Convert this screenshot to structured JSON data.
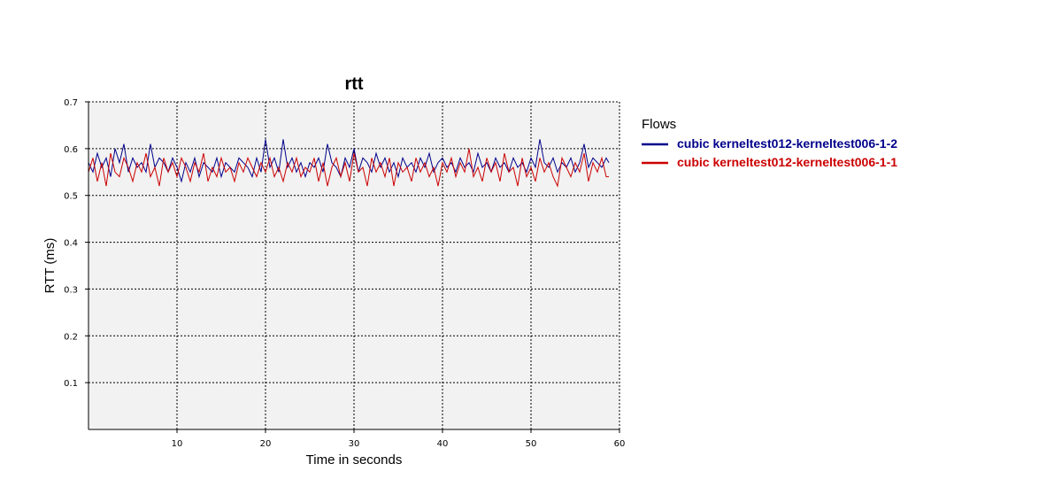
{
  "chart_data": {
    "type": "line",
    "title": "rtt",
    "xlabel": "Time in seconds",
    "ylabel": "RTT (ms)",
    "xlim": [
      0,
      60
    ],
    "ylim": [
      0,
      0.7
    ],
    "x_ticks": [
      10,
      20,
      30,
      40,
      50,
      60
    ],
    "y_ticks": [
      0.1,
      0.2,
      0.3,
      0.4,
      0.5,
      0.6,
      0.7
    ],
    "grid": true,
    "legend": {
      "title": "Flows",
      "position": "right"
    },
    "series": [
      {
        "name": "cubic kerneltest012-kerneltest006-1-2",
        "color": "#00008b",
        "x": [
          0,
          0.5,
          1,
          1.5,
          2,
          2.5,
          3,
          3.5,
          4,
          4.5,
          5,
          5.5,
          6,
          6.5,
          7,
          7.5,
          8,
          8.5,
          9,
          9.5,
          10,
          10.5,
          11,
          11.5,
          12,
          12.5,
          13,
          13.5,
          14,
          14.5,
          15,
          15.5,
          16,
          16.5,
          17,
          17.5,
          18,
          18.5,
          19,
          19.5,
          20,
          20.5,
          21,
          21.5,
          22,
          22.5,
          23,
          23.5,
          24,
          24.5,
          25,
          25.5,
          26,
          26.5,
          27,
          27.5,
          28,
          28.5,
          29,
          29.5,
          30,
          30.5,
          31,
          31.5,
          32,
          32.5,
          33,
          33.5,
          34,
          34.5,
          35,
          35.5,
          36,
          36.5,
          37,
          37.5,
          38,
          38.5,
          39,
          39.5,
          40,
          40.5,
          41,
          41.5,
          42,
          42.5,
          43,
          43.5,
          44,
          44.5,
          45,
          45.5,
          46,
          46.5,
          47,
          47.5,
          48,
          48.5,
          49,
          49.5,
          50,
          50.5,
          51,
          51.5,
          52,
          52.5,
          53,
          53.5,
          54,
          54.5,
          55,
          55.5,
          56,
          56.5,
          57,
          57.5,
          58,
          58.5,
          58.8
        ],
        "values": [
          0.57,
          0.55,
          0.59,
          0.56,
          0.58,
          0.54,
          0.6,
          0.57,
          0.61,
          0.55,
          0.58,
          0.56,
          0.57,
          0.55,
          0.61,
          0.56,
          0.58,
          0.57,
          0.55,
          0.58,
          0.56,
          0.53,
          0.57,
          0.55,
          0.58,
          0.54,
          0.57,
          0.56,
          0.55,
          0.58,
          0.54,
          0.57,
          0.56,
          0.55,
          0.58,
          0.57,
          0.56,
          0.54,
          0.58,
          0.55,
          0.62,
          0.56,
          0.58,
          0.55,
          0.62,
          0.56,
          0.58,
          0.55,
          0.57,
          0.54,
          0.57,
          0.56,
          0.58,
          0.55,
          0.61,
          0.57,
          0.56,
          0.54,
          0.58,
          0.56,
          0.6,
          0.55,
          0.58,
          0.57,
          0.55,
          0.59,
          0.56,
          0.58,
          0.55,
          0.57,
          0.54,
          0.58,
          0.56,
          0.57,
          0.55,
          0.58,
          0.56,
          0.59,
          0.55,
          0.57,
          0.58,
          0.56,
          0.57,
          0.55,
          0.58,
          0.56,
          0.57,
          0.55,
          0.59,
          0.56,
          0.57,
          0.55,
          0.58,
          0.56,
          0.57,
          0.55,
          0.58,
          0.56,
          0.57,
          0.55,
          0.58,
          0.56,
          0.62,
          0.57,
          0.56,
          0.58,
          0.55,
          0.57,
          0.56,
          0.58,
          0.55,
          0.57,
          0.61,
          0.56,
          0.58,
          0.57,
          0.56,
          0.58,
          0.57
        ]
      },
      {
        "name": "cubic kerneltest012-kerneltest006-1-1",
        "color": "#cc0000",
        "x": [
          0,
          0.5,
          1,
          1.5,
          2,
          2.5,
          3,
          3.5,
          4,
          4.5,
          5,
          5.5,
          6,
          6.5,
          7,
          7.5,
          8,
          8.5,
          9,
          9.5,
          10,
          10.5,
          11,
          11.5,
          12,
          12.5,
          13,
          13.5,
          14,
          14.5,
          15,
          15.5,
          16,
          16.5,
          17,
          17.5,
          18,
          18.5,
          19,
          19.5,
          20,
          20.5,
          21,
          21.5,
          22,
          22.5,
          23,
          23.5,
          24,
          24.5,
          25,
          25.5,
          26,
          26.5,
          27,
          27.5,
          28,
          28.5,
          29,
          29.5,
          30,
          30.5,
          31,
          31.5,
          32,
          32.5,
          33,
          33.5,
          34,
          34.5,
          35,
          35.5,
          36,
          36.5,
          37,
          37.5,
          38,
          38.5,
          39,
          39.5,
          40,
          40.5,
          41,
          41.5,
          42,
          42.5,
          43,
          43.5,
          44,
          44.5,
          45,
          45.5,
          46,
          46.5,
          47,
          47.5,
          48,
          48.5,
          49,
          49.5,
          50,
          50.5,
          51,
          51.5,
          52,
          52.5,
          53,
          53.5,
          54,
          54.5,
          55,
          55.5,
          56,
          56.5,
          57,
          57.5,
          58,
          58.5,
          58.8
        ],
        "values": [
          0.55,
          0.58,
          0.53,
          0.57,
          0.52,
          0.59,
          0.55,
          0.54,
          0.58,
          0.56,
          0.53,
          0.57,
          0.55,
          0.59,
          0.54,
          0.56,
          0.52,
          0.58,
          0.55,
          0.57,
          0.54,
          0.58,
          0.56,
          0.53,
          0.57,
          0.55,
          0.59,
          0.53,
          0.56,
          0.54,
          0.58,
          0.55,
          0.56,
          0.53,
          0.57,
          0.55,
          0.58,
          0.56,
          0.54,
          0.57,
          0.55,
          0.58,
          0.54,
          0.56,
          0.53,
          0.57,
          0.55,
          0.58,
          0.54,
          0.56,
          0.55,
          0.58,
          0.53,
          0.57,
          0.52,
          0.56,
          0.58,
          0.54,
          0.57,
          0.53,
          0.59,
          0.55,
          0.56,
          0.52,
          0.58,
          0.55,
          0.57,
          0.54,
          0.58,
          0.52,
          0.57,
          0.55,
          0.56,
          0.53,
          0.58,
          0.55,
          0.57,
          0.54,
          0.56,
          0.52,
          0.57,
          0.55,
          0.58,
          0.54,
          0.57,
          0.55,
          0.6,
          0.54,
          0.56,
          0.53,
          0.58,
          0.55,
          0.57,
          0.53,
          0.59,
          0.55,
          0.56,
          0.52,
          0.58,
          0.54,
          0.56,
          0.53,
          0.58,
          0.55,
          0.57,
          0.54,
          0.52,
          0.58,
          0.56,
          0.54,
          0.57,
          0.55,
          0.59,
          0.53,
          0.57,
          0.55,
          0.58,
          0.54,
          0.54
        ]
      }
    ]
  }
}
